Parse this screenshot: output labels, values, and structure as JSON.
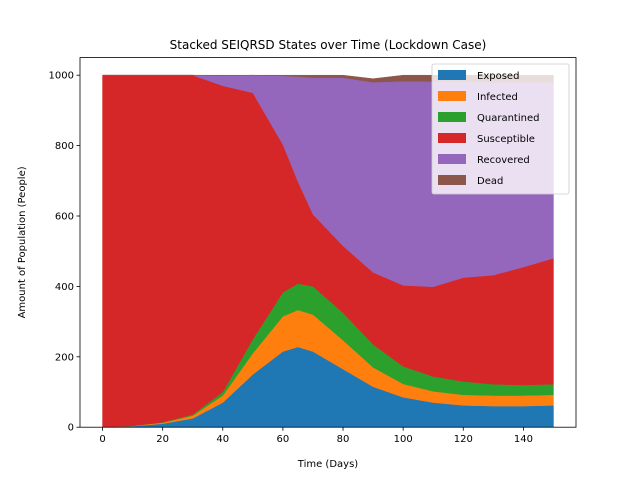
{
  "chart_data": {
    "type": "area",
    "stacked": true,
    "title": "Stacked SEIQRSD States over Time (Lockdown Case)",
    "xlabel": "Time (Days)",
    "ylabel": "Amount of Population (People)",
    "xlim": [
      -7.5,
      157.5
    ],
    "ylim": [
      0,
      1050
    ],
    "xticks": [
      0,
      20,
      40,
      60,
      80,
      100,
      120,
      140
    ],
    "yticks": [
      0,
      200,
      400,
      600,
      800,
      1000
    ],
    "grid": false,
    "legend_position": "top-right",
    "x": [
      0,
      10,
      20,
      30,
      40,
      50,
      60,
      65,
      70,
      80,
      90,
      100,
      110,
      120,
      130,
      140,
      150
    ],
    "series": [
      {
        "name": "Exposed",
        "color": "#1f77b4",
        "values": [
          0,
          3,
          10,
          25,
          70,
          150,
          215,
          228,
          215,
          165,
          115,
          85,
          70,
          62,
          60,
          60,
          62
        ]
      },
      {
        "name": "Infected",
        "color": "#ff7f0e",
        "values": [
          0,
          1,
          3,
          8,
          20,
          60,
          100,
          105,
          105,
          82,
          55,
          38,
          32,
          30,
          30,
          30,
          30
        ]
      },
      {
        "name": "Quarantined",
        "color": "#2ca02c",
        "values": [
          0,
          0,
          1,
          3,
          10,
          40,
          68,
          75,
          80,
          78,
          65,
          50,
          42,
          38,
          32,
          30,
          30
        ]
      },
      {
        "name": "Susceptible",
        "color": "#d62728",
        "values": [
          1000,
          996,
          986,
          964,
          870,
          700,
          420,
          290,
          205,
          190,
          205,
          230,
          255,
          295,
          310,
          335,
          358
        ]
      },
      {
        "name": "Recovered",
        "color": "#9467bd",
        "values": [
          0,
          0,
          0,
          0,
          29,
          50,
          195,
          298,
          388,
          478,
          540,
          580,
          583,
          557,
          548,
          525,
          500
        ]
      },
      {
        "name": "Dead",
        "color": "#8c564b",
        "values": [
          0,
          0,
          0,
          0,
          1,
          0,
          2,
          4,
          7,
          7,
          10,
          17,
          18,
          18,
          20,
          20,
          20
        ]
      }
    ]
  }
}
